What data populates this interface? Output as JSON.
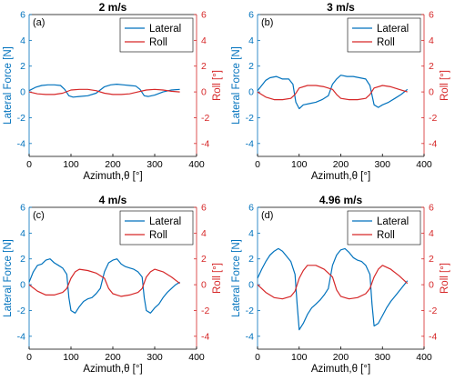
{
  "colors": {
    "lateral": "#0072BD",
    "roll": "#D62728",
    "axis": "#000000"
  },
  "chart_data": [
    {
      "type": "line",
      "panel": "(a)",
      "title": "2 m/s",
      "xlabel": "Azimuth,θ [°]",
      "ylabel_left": "Lateral Force [N]",
      "ylabel_right": "Roll [°]",
      "xlim": [
        0,
        400
      ],
      "ylim_left": [
        -5,
        6
      ],
      "ylim_right": [
        -5,
        6
      ],
      "xticks": [
        0,
        100,
        200,
        300,
        400
      ],
      "yticks": [
        -4,
        -2,
        0,
        2,
        4,
        6
      ],
      "legend_position": "top-right",
      "series": [
        {
          "name": "Lateral",
          "axis": "left",
          "x": [
            0,
            15,
            30,
            45,
            60,
            75,
            85,
            95,
            105,
            120,
            140,
            160,
            180,
            195,
            210,
            225,
            240,
            255,
            265,
            275,
            285,
            300,
            320,
            340,
            360
          ],
          "y": [
            0.1,
            0.35,
            0.5,
            0.55,
            0.55,
            0.5,
            0.2,
            -0.3,
            -0.4,
            -0.35,
            -0.3,
            -0.1,
            0.4,
            0.55,
            0.6,
            0.55,
            0.5,
            0.45,
            0.2,
            -0.3,
            -0.35,
            -0.25,
            0.0,
            0.15,
            0.2
          ]
        },
        {
          "name": "Roll",
          "axis": "right",
          "x": [
            0,
            20,
            40,
            60,
            80,
            100,
            120,
            140,
            160,
            180,
            200,
            220,
            240,
            260,
            280,
            300,
            320,
            340,
            360
          ],
          "y": [
            0.0,
            -0.15,
            -0.2,
            -0.2,
            -0.1,
            0.15,
            0.2,
            0.2,
            0.1,
            -0.1,
            -0.2,
            -0.2,
            -0.15,
            0.0,
            0.15,
            0.2,
            0.15,
            0.05,
            0.0
          ]
        }
      ]
    },
    {
      "type": "line",
      "panel": "(b)",
      "title": "3 m/s",
      "xlabel": "Azimuth,θ [°]",
      "ylabel_left": "Lateral Force [N]",
      "ylabel_right": "Roll [°]",
      "xlim": [
        0,
        400
      ],
      "ylim_left": [
        -5,
        6
      ],
      "ylim_right": [
        -5,
        6
      ],
      "xticks": [
        0,
        100,
        200,
        300,
        400
      ],
      "yticks": [
        -4,
        -2,
        0,
        2,
        4,
        6
      ],
      "legend_position": "top-right",
      "series": [
        {
          "name": "Lateral",
          "axis": "left",
          "x": [
            0,
            10,
            20,
            30,
            45,
            60,
            75,
            85,
            92,
            100,
            110,
            125,
            140,
            155,
            170,
            180,
            190,
            200,
            215,
            230,
            245,
            260,
            270,
            280,
            290,
            300,
            315,
            330,
            345,
            360
          ],
          "y": [
            0.1,
            0.5,
            0.9,
            1.1,
            1.2,
            1.0,
            1.0,
            0.6,
            -0.8,
            -1.3,
            -1.0,
            -0.9,
            -0.8,
            -0.6,
            -0.3,
            0.6,
            1.0,
            1.3,
            1.2,
            1.2,
            1.1,
            1.0,
            0.5,
            -1.0,
            -1.2,
            -1.0,
            -0.8,
            -0.5,
            -0.2,
            0.2
          ]
        },
        {
          "name": "Roll",
          "axis": "right",
          "x": [
            0,
            20,
            40,
            60,
            80,
            90,
            100,
            120,
            140,
            160,
            180,
            190,
            200,
            220,
            240,
            260,
            270,
            280,
            300,
            320,
            340,
            360
          ],
          "y": [
            0.0,
            -0.4,
            -0.6,
            -0.6,
            -0.5,
            -0.2,
            0.3,
            0.5,
            0.5,
            0.4,
            0.2,
            -0.2,
            -0.5,
            -0.6,
            -0.6,
            -0.5,
            -0.2,
            0.3,
            0.5,
            0.4,
            0.2,
            0.0
          ]
        }
      ]
    },
    {
      "type": "line",
      "panel": "(c)",
      "title": "4 m/s",
      "xlabel": "Azimuth,θ [°]",
      "ylabel_left": "Lateral Force [N]",
      "ylabel_right": "Roll [°]",
      "xlim": [
        0,
        400
      ],
      "ylim_left": [
        -5,
        6
      ],
      "ylim_right": [
        -5,
        6
      ],
      "xticks": [
        0,
        100,
        200,
        300,
        400
      ],
      "yticks": [
        -4,
        -2,
        0,
        2,
        4,
        6
      ],
      "legend_position": "top-right",
      "series": [
        {
          "name": "Lateral",
          "axis": "left",
          "x": [
            0,
            10,
            20,
            30,
            40,
            50,
            60,
            70,
            80,
            90,
            95,
            100,
            110,
            120,
            130,
            140,
            150,
            160,
            170,
            180,
            190,
            200,
            210,
            220,
            230,
            240,
            250,
            260,
            270,
            275,
            280,
            290,
            300,
            310,
            320,
            330,
            340,
            350,
            360
          ],
          "y": [
            0.2,
            1.0,
            1.5,
            1.6,
            1.9,
            2.0,
            1.7,
            1.5,
            1.3,
            0.8,
            -1.0,
            -2.0,
            -2.2,
            -1.7,
            -1.3,
            -1.1,
            -1.0,
            -0.7,
            -0.3,
            1.0,
            1.7,
            1.9,
            2.0,
            1.6,
            1.4,
            1.3,
            1.2,
            1.0,
            0.6,
            -1.0,
            -2.0,
            -2.2,
            -1.8,
            -1.5,
            -1.0,
            -0.6,
            -0.3,
            0.0,
            0.2
          ]
        },
        {
          "name": "Roll",
          "axis": "right",
          "x": [
            0,
            20,
            40,
            60,
            80,
            90,
            100,
            110,
            120,
            140,
            160,
            180,
            190,
            200,
            220,
            240,
            260,
            270,
            280,
            290,
            300,
            320,
            340,
            360
          ],
          "y": [
            0.0,
            -0.5,
            -0.8,
            -0.8,
            -0.6,
            -0.3,
            0.5,
            1.0,
            1.2,
            1.1,
            0.9,
            0.5,
            -0.3,
            -0.7,
            -0.9,
            -0.8,
            -0.6,
            -0.3,
            0.6,
            1.0,
            1.2,
            1.0,
            0.6,
            0.1
          ]
        }
      ]
    },
    {
      "type": "line",
      "panel": "(d)",
      "title": "4.96 m/s",
      "xlabel": "Azimuth,θ [°]",
      "ylabel_left": "Lateral Force [N]",
      "ylabel_right": "Roll [°]",
      "xlim": [
        0,
        400
      ],
      "ylim_left": [
        -5,
        6
      ],
      "ylim_right": [
        -5,
        6
      ],
      "xticks": [
        0,
        100,
        200,
        300,
        400
      ],
      "yticks": [
        -4,
        -2,
        0,
        2,
        4,
        6
      ],
      "legend_position": "top-right",
      "series": [
        {
          "name": "Lateral",
          "axis": "left",
          "x": [
            0,
            10,
            20,
            30,
            40,
            50,
            60,
            70,
            80,
            90,
            95,
            100,
            110,
            120,
            130,
            140,
            150,
            160,
            170,
            180,
            190,
            200,
            210,
            220,
            230,
            240,
            250,
            260,
            270,
            275,
            280,
            290,
            300,
            310,
            320,
            330,
            340,
            350,
            360
          ],
          "y": [
            0.5,
            1.2,
            1.8,
            2.3,
            2.6,
            2.8,
            2.6,
            2.2,
            1.8,
            0.8,
            -1.5,
            -3.5,
            -3.0,
            -2.3,
            -1.8,
            -1.5,
            -1.2,
            -0.8,
            -0.3,
            1.5,
            2.3,
            2.7,
            2.8,
            2.5,
            2.1,
            1.9,
            1.8,
            1.5,
            0.8,
            -1.5,
            -3.2,
            -3.0,
            -2.4,
            -1.8,
            -1.3,
            -0.9,
            -0.5,
            -0.1,
            0.3
          ]
        },
        {
          "name": "Roll",
          "axis": "right",
          "x": [
            0,
            20,
            40,
            60,
            80,
            90,
            100,
            110,
            120,
            140,
            160,
            180,
            190,
            200,
            220,
            240,
            260,
            270,
            280,
            290,
            300,
            320,
            340,
            360
          ],
          "y": [
            0.0,
            -0.6,
            -1.0,
            -1.1,
            -0.9,
            -0.5,
            0.5,
            1.1,
            1.5,
            1.5,
            1.2,
            0.6,
            -0.4,
            -0.9,
            -1.1,
            -1.0,
            -0.7,
            -0.3,
            0.6,
            1.2,
            1.5,
            1.2,
            0.7,
            0.1
          ]
        }
      ]
    }
  ]
}
